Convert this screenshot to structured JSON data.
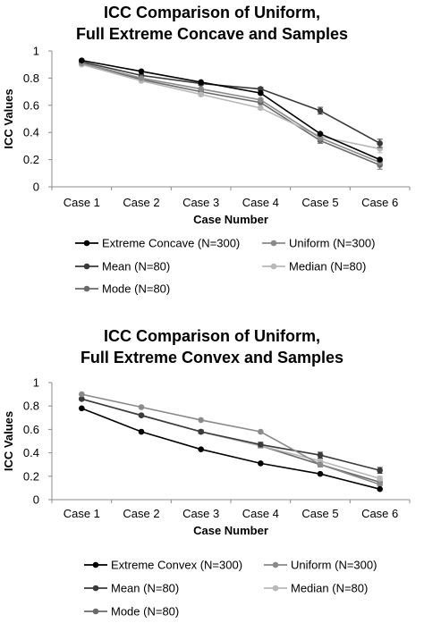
{
  "chart_data": [
    {
      "type": "line",
      "title": [
        "ICC Comparison of Uniform,",
        "Full Extreme Concave and Samples"
      ],
      "xlabel": "Case Number",
      "ylabel": "ICC Values",
      "categories": [
        "Case 1",
        "Case 2",
        "Case 3",
        "Case 4",
        "Case 5",
        "Case 6"
      ],
      "ylim": [
        0,
        1
      ],
      "yticks": [
        "0",
        "0.2",
        "0.4",
        "0.6",
        "0.8",
        "1"
      ],
      "yticks_values": [
        0,
        0.2,
        0.4,
        0.6,
        0.8,
        1
      ],
      "grid": false,
      "legend_position": "bottom",
      "series": [
        {
          "name": "Extreme Concave (N=300)",
          "values": [
            0.93,
            0.85,
            0.77,
            0.69,
            0.39,
            0.2
          ],
          "color": "#000000",
          "error": [
            0,
            0,
            0,
            0,
            0,
            0
          ]
        },
        {
          "name": "Uniform (N=300)",
          "values": [
            0.91,
            0.8,
            0.72,
            0.64,
            0.36,
            0.18
          ],
          "color": "#8a8a8a",
          "error": [
            0,
            0,
            0,
            0,
            0,
            0
          ]
        },
        {
          "name": "Mean (N=80)",
          "values": [
            0.92,
            0.82,
            0.76,
            0.72,
            0.56,
            0.32
          ],
          "color": "#3a3a3a",
          "error": [
            0.006,
            0.01,
            0.012,
            0.012,
            0.025,
            0.03
          ]
        },
        {
          "name": "Median (N=80)",
          "values": [
            0.9,
            0.78,
            0.68,
            0.58,
            0.37,
            0.28
          ],
          "color": "#b8b8b8",
          "error": [
            0.006,
            0.01,
            0.012,
            0.012,
            0.02,
            0.03
          ]
        },
        {
          "name": "Mode (N=80)",
          "values": [
            0.91,
            0.79,
            0.7,
            0.62,
            0.34,
            0.16
          ],
          "color": "#6a6a6a",
          "error": [
            0.006,
            0.01,
            0.012,
            0.012,
            0.02,
            0.03
          ]
        }
      ]
    },
    {
      "type": "line",
      "title": [
        "ICC Comparison of Uniform,",
        "Full Extreme Convex and Samples"
      ],
      "xlabel": "Case Number",
      "ylabel": "ICC Values",
      "categories": [
        "Case 1",
        "Case 2",
        "Case 3",
        "Case 4",
        "Case 5",
        "Case 6"
      ],
      "ylim": [
        0,
        1
      ],
      "yticks": [
        "0",
        "0.2",
        "0.4",
        "0.6",
        "0.8",
        "1"
      ],
      "yticks_values": [
        0,
        0.2,
        0.4,
        0.6,
        0.8,
        1
      ],
      "grid": false,
      "legend_position": "bottom",
      "series": [
        {
          "name": "Extreme Convex (N=300)",
          "values": [
            0.78,
            0.58,
            0.43,
            0.31,
            0.22,
            0.09
          ],
          "color": "#000000",
          "error": [
            0,
            0,
            0,
            0,
            0,
            0
          ]
        },
        {
          "name": "Uniform (N=300)",
          "values": [
            0.9,
            0.79,
            0.68,
            0.58,
            0.3,
            0.13
          ],
          "color": "#8a8a8a",
          "error": [
            0,
            0,
            0,
            0,
            0,
            0
          ]
        },
        {
          "name": "Mean (N=80)",
          "values": [
            0.86,
            0.72,
            0.58,
            0.47,
            0.38,
            0.25
          ],
          "color": "#3a3a3a",
          "error": [
            0.006,
            0.01,
            0.015,
            0.02,
            0.025,
            0.025
          ]
        },
        {
          "name": "Median (N=80)",
          "values": [
            0.86,
            0.72,
            0.58,
            0.46,
            0.33,
            0.18
          ],
          "color": "#b8b8b8",
          "error": [
            0.006,
            0.01,
            0.015,
            0.02,
            0.02,
            0.02
          ]
        },
        {
          "name": "Mode (N=80)",
          "values": [
            0.86,
            0.72,
            0.58,
            0.46,
            0.3,
            0.15
          ],
          "color": "#6a6a6a",
          "error": [
            0.006,
            0.01,
            0.015,
            0.02,
            0.02,
            0.02
          ]
        }
      ]
    }
  ]
}
